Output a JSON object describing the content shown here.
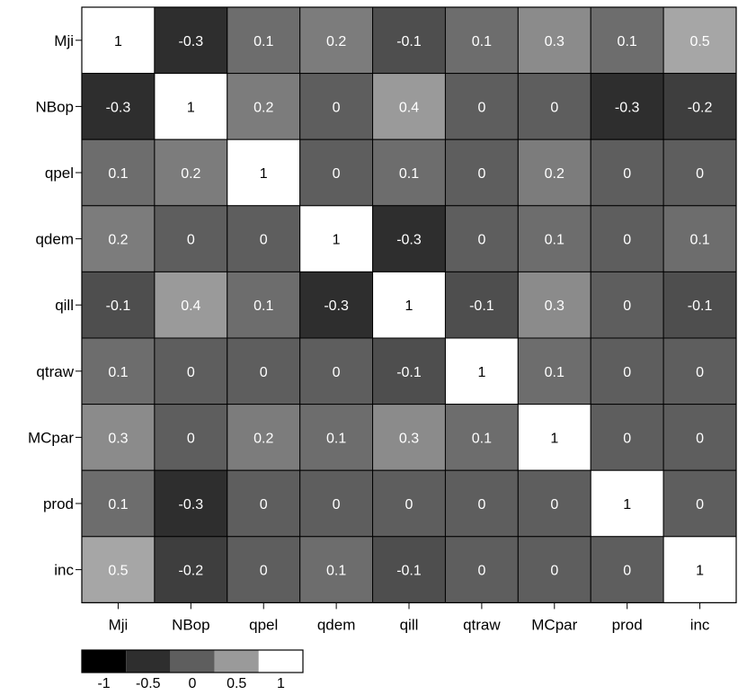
{
  "chart_data": {
    "type": "heatmap",
    "rows": [
      "Mji",
      "NBop",
      "qpel",
      "qdem",
      "qill",
      "qtraw",
      "MCpar",
      "prod",
      "inc"
    ],
    "columns": [
      "Mji",
      "NBop",
      "qpel",
      "qdem",
      "qill",
      "qtraw",
      "MCpar",
      "prod",
      "inc"
    ],
    "values": [
      [
        1,
        -0.3,
        0.1,
        0.2,
        -0.1,
        0.1,
        0.3,
        0.1,
        0.5
      ],
      [
        -0.3,
        1,
        0.2,
        0,
        0.4,
        0,
        0,
        -0.3,
        -0.2
      ],
      [
        0.1,
        0.2,
        1,
        0,
        0.1,
        0,
        0.2,
        0,
        0
      ],
      [
        0.2,
        0,
        0,
        1,
        -0.3,
        0,
        0.1,
        0,
        0.1
      ],
      [
        -0.1,
        0.4,
        0.1,
        -0.3,
        1,
        -0.1,
        0.3,
        0,
        -0.1
      ],
      [
        0.1,
        0,
        0,
        0,
        -0.1,
        1,
        0.1,
        0,
        0
      ],
      [
        0.3,
        0,
        0.2,
        0.1,
        0.3,
        0.1,
        1,
        0,
        0
      ],
      [
        0.1,
        -0.3,
        0,
        0,
        0,
        0,
        0,
        1,
        0
      ],
      [
        0.5,
        -0.2,
        0,
        0.1,
        -0.1,
        0,
        0,
        0,
        1
      ]
    ],
    "value_range": [
      -1,
      1
    ],
    "legend": {
      "position": "bottom-left",
      "tick_labels": [
        "-1",
        "-0.5",
        "0",
        "0.5",
        "1"
      ],
      "colors": [
        "#000000",
        "#2e2e2e",
        "#5e5e5e",
        "#9a9a9a",
        "#ffffff"
      ]
    }
  }
}
